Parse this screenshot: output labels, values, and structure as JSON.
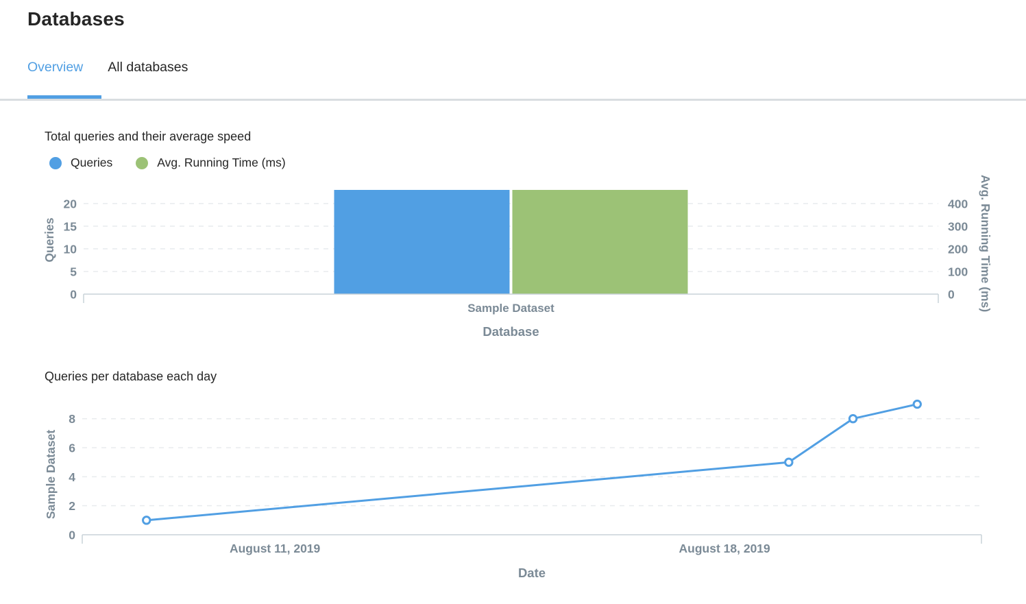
{
  "page": {
    "title": "Databases"
  },
  "tabs": [
    {
      "label": "Overview",
      "active": true
    },
    {
      "label": "All databases",
      "active": false
    }
  ],
  "colors": {
    "accent_blue": "#519fe3",
    "accent_green": "#9cc276",
    "axis_text": "#7b8a96",
    "heading_text": "#262626",
    "gridline": "#e8ebee",
    "axis_line": "#c9d2d8",
    "marker_fill": "#ffffff"
  },
  "chart_data": [
    {
      "type": "bar",
      "title": "Total queries and their average speed",
      "legend": [
        {
          "label": "Queries",
          "color": "#519fe3"
        },
        {
          "label": "Avg. Running Time (ms)",
          "color": "#9cc276"
        }
      ],
      "categories": [
        "Sample Dataset"
      ],
      "series": [
        {
          "name": "Queries",
          "axis": "left",
          "color": "#519fe3",
          "values": [
            23
          ]
        },
        {
          "name": "Avg. Running Time (ms)",
          "axis": "right",
          "color": "#9cc276",
          "values": [
            460
          ]
        }
      ],
      "xlabel": "Database",
      "ylabel_left": "Queries",
      "ylabel_right": "Avg. Running Time (ms)",
      "yticks_left": [
        0,
        5,
        10,
        15,
        20
      ],
      "yticks_right": [
        0,
        100,
        200,
        300,
        400
      ],
      "ylim_left": [
        0,
        23
      ],
      "ylim_right": [
        0,
        460
      ],
      "grid": true,
      "legend_position": "top-left"
    },
    {
      "type": "line",
      "title": "Queries per database each day",
      "series": [
        {
          "name": "Sample Dataset",
          "color": "#519fe3",
          "points": [
            {
              "x": "August 9, 2019",
              "day": 9,
              "y": 1
            },
            {
              "x": "August 19, 2019",
              "day": 19,
              "y": 5
            },
            {
              "x": "August 20, 2019",
              "day": 20,
              "y": 8
            },
            {
              "x": "August 21, 2019",
              "day": 21,
              "y": 9
            }
          ]
        }
      ],
      "xlabel": "Date",
      "ylabel": "Sample Dataset",
      "yticks": [
        0,
        2,
        4,
        6,
        8
      ],
      "xticks": [
        {
          "label": "August 11, 2019",
          "day": 11
        },
        {
          "label": "August 18, 2019",
          "day": 18
        }
      ],
      "x_domain_days": [
        8,
        22
      ],
      "ylim": [
        0,
        9.9
      ],
      "grid": true
    }
  ]
}
